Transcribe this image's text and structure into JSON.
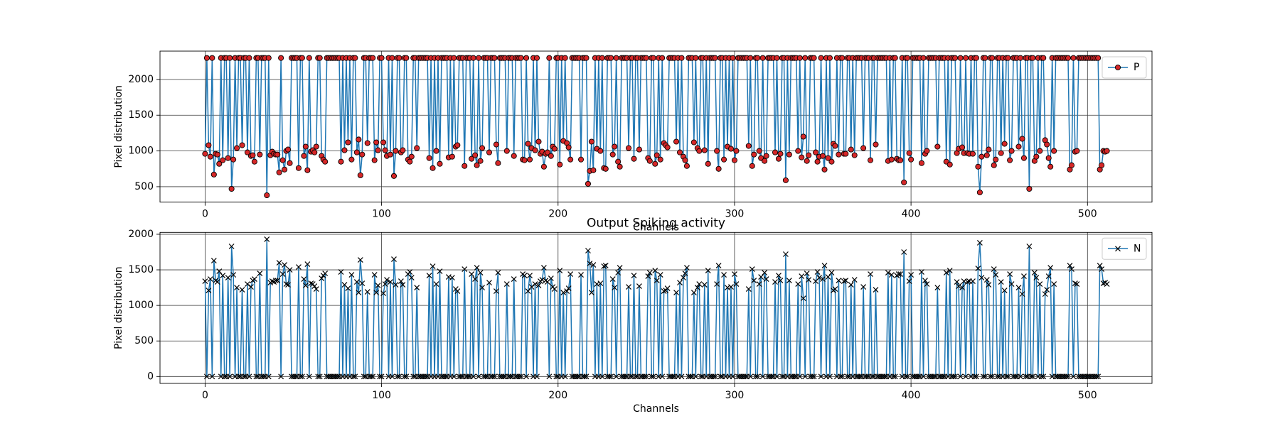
{
  "chart_data": [
    {
      "type": "line",
      "xlabel": "Channels",
      "ylabel": "Pixel distribution",
      "xlim": [
        -25.55,
        536.55
      ],
      "xticks": [
        0,
        100,
        200,
        300,
        400,
        500
      ],
      "ylim": [
        284,
        2396
      ],
      "yticks": [
        500,
        1000,
        1500,
        2000
      ],
      "grid": true,
      "legend": "upper right",
      "series": [
        {
          "name": "P",
          "color": "#1f77b4",
          "marker": "o",
          "marker_color": "#d62728",
          "marker_edge_color": "#000000",
          "values": [
            960,
            2300,
            1080,
            920,
            2300,
            670,
            960,
            950,
            820,
            2300,
            870,
            2300,
            2300,
            900,
            2300,
            470,
            880,
            2300,
            1040,
            2300,
            2300,
            1080,
            2300,
            2300,
            980,
            2300,
            930,
            940,
            850,
            2300,
            2300,
            950,
            2300,
            2300,
            2300,
            380,
            2300,
            940,
            990,
            960,
            950,
            950,
            700,
            2300,
            870,
            740,
            1000,
            1020,
            830,
            2300,
            2300,
            2300,
            2300,
            760,
            2300,
            2300,
            930,
            1060,
            730,
            2300,
            990,
            1010,
            980,
            1060,
            2300,
            2300,
            930,
            880,
            850,
            2300,
            2300,
            2300,
            2300,
            2300,
            2300,
            2300,
            2300,
            850,
            2300,
            1010,
            2300,
            1120,
            2300,
            880,
            2300,
            2300,
            980,
            1160,
            660,
            950,
            2300,
            2300,
            1110,
            2300,
            2300,
            2300,
            870,
            1120,
            1010,
            2300,
            2300,
            1120,
            1010,
            930,
            2300,
            950,
            2300,
            650,
            1000,
            2300,
            2300,
            980,
            1010,
            2300,
            2300,
            880,
            850,
            920,
            2300,
            2300,
            1040,
            2300,
            2300,
            2300,
            2300,
            2300,
            2300,
            900,
            2300,
            760,
            2300,
            1000,
            2300,
            820,
            2300,
            2300,
            2300,
            2300,
            910,
            2300,
            920,
            2300,
            1060,
            1080,
            2300,
            2300,
            2300,
            790,
            2300,
            2300,
            2300,
            890,
            2300,
            940,
            800,
            2300,
            860,
            1040,
            2300,
            2300,
            2300,
            980,
            2300,
            2300,
            2300,
            1090,
            830,
            2300,
            2300,
            2300,
            2300,
            1000,
            2300,
            2300,
            2300,
            930,
            2300,
            2300,
            2300,
            2300,
            880,
            870,
            2300,
            1100,
            880,
            1040,
            2300,
            1010,
            2300,
            1130,
            960,
            990,
            780,
            960,
            980,
            2300,
            930,
            1060,
            1030,
            2300,
            2300,
            810,
            2300,
            1140,
            2300,
            1110,
            1050,
            880,
            2300,
            2300,
            2300,
            2300,
            2300,
            880,
            2300,
            2300,
            2300,
            540,
            720,
            1130,
            730,
            2300,
            1030,
            2300,
            1000,
            2300,
            760,
            750,
            2300,
            2300,
            2300,
            950,
            1060,
            2300,
            850,
            780,
            2300,
            2300,
            2300,
            2300,
            1040,
            2300,
            2300,
            890,
            2300,
            2300,
            1020,
            2300,
            2300,
            2300,
            2300,
            900,
            860,
            2300,
            2300,
            820,
            940,
            2300,
            880,
            2300,
            1110,
            1080,
            1050,
            2300,
            2300,
            2300,
            2300,
            1130,
            2300,
            980,
            2300,
            920,
            870,
            790,
            2300,
            2300,
            2300,
            1120,
            2300,
            1040,
            1000,
            2300,
            2300,
            1010,
            2300,
            820,
            2300,
            2300,
            2300,
            2300,
            1000,
            750,
            2300,
            2300,
            880,
            2300,
            1060,
            2300,
            1030,
            2300,
            870,
            1000,
            2300,
            2300,
            2300,
            2300,
            2300,
            2300,
            1070,
            2300,
            790,
            950,
            2300,
            2300,
            1000,
            900,
            2300,
            860,
            930,
            2300,
            2300,
            2300,
            2300,
            980,
            2300,
            890,
            960,
            2300,
            2300,
            590,
            2300,
            950,
            2300,
            2300,
            2300,
            2300,
            1000,
            2300,
            910,
            1200,
            2300,
            860,
            940,
            2300,
            2300,
            2300,
            980,
            850,
            920,
            2300,
            930,
            740,
            2300,
            900,
            2300,
            850,
            1100,
            1070,
            2300,
            950,
            2300,
            2300,
            960,
            960,
            2300,
            2300,
            1020,
            2300,
            940,
            2300,
            2300,
            2300,
            2300,
            1040,
            2300,
            2300,
            2300,
            870,
            2300,
            2300,
            1090,
            2300,
            2300,
            2300,
            2300,
            2300,
            2300,
            860,
            2300,
            880,
            2300,
            2300,
            890,
            870,
            870,
            2300,
            560,
            2300,
            2300,
            970,
            880,
            2300,
            2300,
            2300,
            2300,
            2300,
            830,
            2300,
            960,
            1000,
            2300,
            2300,
            2300,
            2300,
            2300,
            1060,
            2300,
            2300,
            2300,
            2300,
            850,
            2300,
            810,
            2300,
            2300,
            2300,
            970,
            1030,
            2300,
            1050,
            970,
            2300,
            970,
            960,
            2300,
            960,
            2300,
            2300,
            780,
            420,
            920,
            2300,
            2300,
            940,
            1020,
            2300,
            2300,
            800,
            880,
            2300,
            2300,
            970,
            2300,
            1100,
            2300,
            2300,
            870,
            1000,
            2300,
            2300,
            2300,
            1060,
            2300,
            1170,
            900,
            2300,
            2300,
            470,
            2300,
            2300,
            860,
            920,
            2300,
            1000,
            2300,
            2300,
            1150,
            1090,
            900,
            780,
            2300,
            1000,
            2300,
            2300,
            2300,
            2300,
            2300,
            2300,
            2300,
            2300,
            740,
            800,
            2300,
            990,
            1000,
            2300,
            2300,
            2300,
            2300,
            2300,
            2300,
            2300,
            2300,
            2300,
            2300,
            2300,
            2300,
            740,
            800,
            1000,
            990,
            1000
          ]
        }
      ]
    },
    {
      "type": "line",
      "title": "Output Spiking activity",
      "xlabel": "Channels",
      "ylabel": "Pixel distribution",
      "xlim": [
        -25.55,
        536.55
      ],
      "xticks": [
        0,
        100,
        200,
        300,
        400,
        500
      ],
      "ylim": [
        -96.5,
        2026.5
      ],
      "yticks": [
        0,
        500,
        1000,
        1500,
        2000
      ],
      "grid": true,
      "legend": "upper right",
      "series": [
        {
          "name": "N",
          "color": "#1f77b4",
          "marker": "x",
          "marker_color": "#000000",
          "marker_edge_color": "#000000",
          "values": [
            1340,
            0,
            1210,
            1370,
            0,
            1630,
            1350,
            1330,
            1480,
            0,
            1420,
            0,
            0,
            1390,
            0,
            1830,
            1430,
            0,
            1250,
            0,
            0,
            1220,
            0,
            0,
            1300,
            0,
            1260,
            1350,
            1370,
            0,
            0,
            1450,
            0,
            0,
            0,
            1930,
            0,
            1320,
            1340,
            1330,
            1350,
            1350,
            1600,
            0,
            1440,
            1570,
            1300,
            1290,
            1500,
            0,
            0,
            0,
            0,
            1540,
            0,
            0,
            1370,
            1280,
            1580,
            0,
            1310,
            1300,
            1270,
            1230,
            0,
            0,
            1380,
            1420,
            1450,
            0,
            0,
            0,
            0,
            0,
            0,
            0,
            0,
            1470,
            0,
            1290,
            0,
            1240,
            0,
            1430,
            0,
            0,
            1330,
            1180,
            1640,
            1310,
            0,
            0,
            1190,
            0,
            0,
            0,
            1430,
            1180,
            1280,
            0,
            0,
            1170,
            1300,
            1360,
            0,
            1330,
            0,
            1650,
            1290,
            0,
            0,
            1340,
            1290,
            0,
            0,
            1440,
            1470,
            1390,
            0,
            0,
            1250,
            0,
            0,
            0,
            0,
            0,
            0,
            1420,
            0,
            1550,
            0,
            1300,
            0,
            1480,
            0,
            0,
            0,
            0,
            1400,
            0,
            1390,
            0,
            1230,
            1200,
            0,
            0,
            0,
            1510,
            0,
            0,
            0,
            1440,
            0,
            1370,
            1530,
            0,
            1460,
            1250,
            0,
            0,
            0,
            1320,
            0,
            0,
            0,
            1200,
            1460,
            0,
            0,
            0,
            0,
            1300,
            0,
            0,
            0,
            1370,
            0,
            0,
            0,
            0,
            1440,
            1420,
            0,
            1200,
            1420,
            1260,
            0,
            1300,
            0,
            1280,
            1340,
            1360,
            1530,
            1350,
            1330,
            0,
            1380,
            1260,
            1230,
            0,
            0,
            1490,
            0,
            1180,
            0,
            1200,
            1240,
            1440,
            0,
            0,
            0,
            0,
            0,
            1430,
            0,
            0,
            0,
            1770,
            1590,
            1180,
            1570,
            0,
            1300,
            0,
            1310,
            0,
            1550,
            1560,
            0,
            0,
            0,
            1370,
            1250,
            0,
            1460,
            1530,
            0,
            0,
            0,
            0,
            1260,
            0,
            0,
            1420,
            0,
            0,
            1270,
            0,
            0,
            0,
            0,
            1410,
            1460,
            0,
            0,
            1490,
            1350,
            0,
            1430,
            0,
            1200,
            1210,
            1240,
            0,
            0,
            0,
            0,
            1180,
            0,
            1320,
            0,
            1390,
            1450,
            1530,
            0,
            0,
            0,
            1180,
            0,
            1250,
            1300,
            0,
            0,
            1290,
            0,
            1490,
            0,
            0,
            0,
            0,
            1300,
            1560,
            0,
            0,
            1430,
            0,
            1250,
            0,
            1260,
            0,
            1440,
            1300,
            0,
            0,
            0,
            0,
            0,
            0,
            1230,
            0,
            1510,
            1350,
            0,
            0,
            1300,
            1400,
            0,
            1460,
            1370,
            0,
            0,
            0,
            0,
            1330,
            0,
            1420,
            1350,
            0,
            0,
            1720,
            0,
            1350,
            0,
            0,
            0,
            0,
            1300,
            0,
            1410,
            1100,
            0,
            1450,
            1360,
            0,
            0,
            0,
            1340,
            1470,
            1390,
            0,
            1370,
            1560,
            0,
            1400,
            0,
            1460,
            1210,
            1230,
            0,
            1350,
            0,
            0,
            1340,
            1350,
            0,
            0,
            1290,
            0,
            1360,
            0,
            0,
            0,
            0,
            1260,
            0,
            0,
            0,
            1440,
            0,
            0,
            1220,
            0,
            0,
            0,
            0,
            0,
            0,
            1460,
            0,
            1430,
            0,
            0,
            1420,
            1440,
            1440,
            0,
            1750,
            0,
            0,
            1340,
            1430,
            0,
            0,
            0,
            0,
            0,
            1470,
            0,
            1350,
            1300,
            0,
            0,
            0,
            0,
            0,
            1250,
            0,
            0,
            0,
            0,
            1460,
            0,
            1490,
            0,
            0,
            0,
            1330,
            1270,
            0,
            1250,
            1340,
            0,
            1330,
            1340,
            0,
            1340,
            0,
            0,
            1520,
            1880,
            1390,
            0,
            0,
            1360,
            1290,
            0,
            0,
            1510,
            1430,
            0,
            0,
            1330,
            0,
            1210,
            0,
            0,
            1440,
            1300,
            0,
            0,
            0,
            1250,
            0,
            1160,
            1410,
            0,
            0,
            1830,
            0,
            0,
            1460,
            1390,
            0,
            1300,
            0,
            0,
            1160,
            1220,
            1410,
            1530,
            0,
            1300,
            0,
            0,
            0,
            0,
            0,
            0,
            0,
            0,
            1560,
            1510,
            0,
            1310,
            1300,
            0,
            0,
            0,
            0,
            0,
            0,
            0,
            0,
            0,
            0,
            0,
            0,
            1560,
            1510,
            1310,
            1320,
            1300
          ]
        }
      ]
    }
  ]
}
